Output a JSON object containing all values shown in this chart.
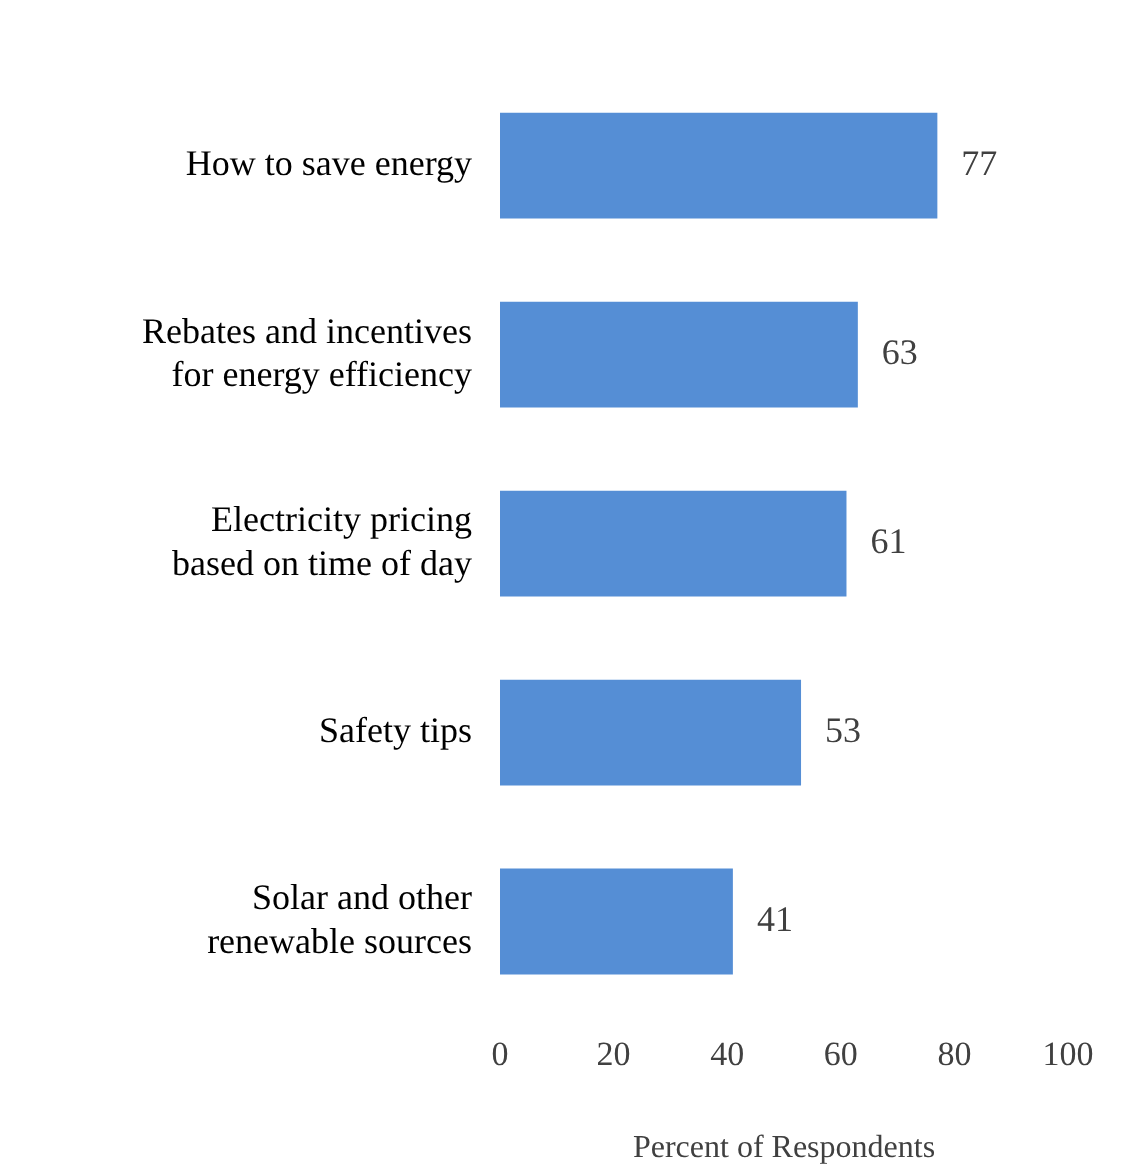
{
  "chart_data": {
    "type": "bar",
    "orientation": "horizontal",
    "xlabel": "Percent of Respondents",
    "categories": [
      "How to save energy",
      "Rebates and incentives for energy efficiency",
      "Electricity pricing based on time of day",
      "Safety tips",
      "Solar and other renewable sources"
    ],
    "values": [
      77,
      63,
      61,
      53,
      41
    ],
    "color": "#558ed5",
    "xlim": [
      0,
      100
    ],
    "xticks": [
      0,
      20,
      40,
      60,
      80,
      100
    ],
    "grid": false,
    "legend": false,
    "data_labels": true
  }
}
